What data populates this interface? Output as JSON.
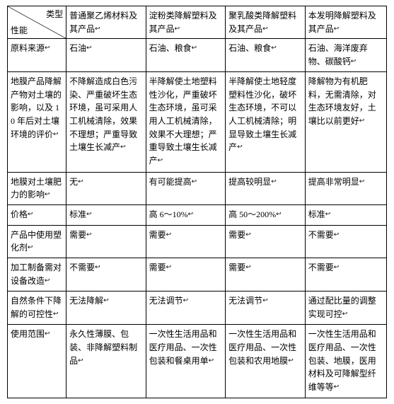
{
  "header": {
    "diag_top": "类型",
    "diag_bottom": "性能",
    "col1": "普通聚乙烯材料及其产品",
    "col2": "淀粉类降解塑料及其产品",
    "col3": "聚乳酸类降解塑料及其产品",
    "col4": "本发明降解塑料及其产品"
  },
  "rows": [
    {
      "label": "原料来源",
      "c1": "石油",
      "c2": "石油、粮食",
      "c3": "石油、粮食",
      "c4": "石油、海洋废弃物、碳酸钙"
    },
    {
      "label": "地膜产品降解产物对土壤的影响，以及 10 年后对土壤环境的评价",
      "c1": "不降解造成白色污染、严重破坏生态环境，虽可采用人工机械清除，效果不理想；严重导致土壤生长减产",
      "c2": "半降解使土地塑料性沙化，严重破坏生态环境，虽可采用人工机械清除，效果不大理想；严重导致土壤生长减产",
      "c3": "半降解使土地轻度塑料性沙化，破坏生态环境，不可以人工机械清除；明显导致土壤生长减产",
      "c4": "降解物为有机肥料，无需清除，对生态环境友好，土壤比以前更好"
    },
    {
      "label": "地膜对土壤肥力的影响",
      "c1": "无",
      "c2": "有可能提高",
      "c3": "提高较明显",
      "c4": "提高非常明显"
    },
    {
      "label": "价格",
      "c1": "标准",
      "c2": "高 6～10%",
      "c3": "高 50～200%",
      "c4": "标准"
    },
    {
      "label": "产品中使用塑化剂",
      "c1": "需要",
      "c2": "需要",
      "c3": "需要",
      "c4": "不需要"
    },
    {
      "label": "加工制备需对设备改造",
      "c1": "不需要",
      "c2": "需要",
      "c3": "需要",
      "c4": "不需要"
    },
    {
      "label": "自然条件下降解的可控性",
      "c1": "无法降解",
      "c2": "无法调节",
      "c3": "无法调节",
      "c4": "通过配比量的调整实现可控"
    },
    {
      "label": "使用范围",
      "c1": "永久性薄膜、包装、非降解塑料制品",
      "c2": "一次性生活用品和医疗用品、一次性包装和餐桌用单",
      "c3": "一次性生活用品和医疗用品、一次性包装和农用地膜",
      "c4": "一次性生活用品和医疗用品、一次性包装、地膜，医用材料及可降解型纤维等等"
    }
  ],
  "marker": "↩"
}
